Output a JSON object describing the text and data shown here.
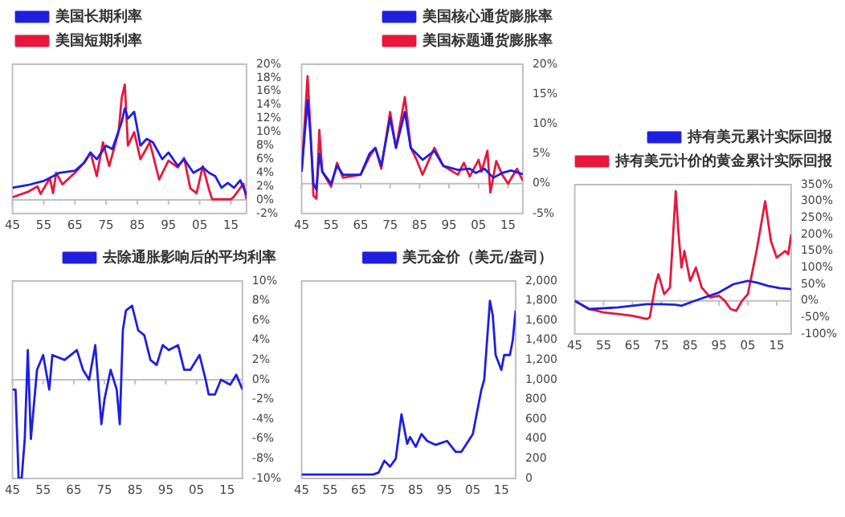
{
  "chart_data": [
    {
      "type": "line",
      "legend": "top left",
      "xlim": [
        1945,
        2020
      ],
      "xticks": [
        {
          "value": 1945,
          "label": "45"
        },
        {
          "value": 1955,
          "label": "55"
        },
        {
          "value": 1965,
          "label": "65"
        },
        {
          "value": 1975,
          "label": "75"
        },
        {
          "value": 1985,
          "label": "85"
        },
        {
          "value": 1995,
          "label": "95"
        },
        {
          "value": 2005,
          "label": "05"
        },
        {
          "value": 2015,
          "label": "15"
        }
      ],
      "ylim": [
        -2,
        20
      ],
      "yticks": [
        {
          "value": -2,
          "label": "-2%"
        },
        {
          "value": 0,
          "label": "0%"
        },
        {
          "value": 2,
          "label": "2%"
        },
        {
          "value": 4,
          "label": "4%"
        },
        {
          "value": 6,
          "label": "6%"
        },
        {
          "value": 8,
          "label": "8%"
        },
        {
          "value": 10,
          "label": "10%"
        },
        {
          "value": 12,
          "label": "12%"
        },
        {
          "value": 14,
          "label": "14%"
        },
        {
          "value": 16,
          "label": "16%"
        },
        {
          "value": 18,
          "label": "18%"
        },
        {
          "value": 20,
          "label": "20%"
        }
      ],
      "ref_lines": [
        {
          "axis": "y",
          "value": 0,
          "color": "#bfbfbf"
        }
      ],
      "series": [
        {
          "name": "美国长期利率",
          "color": "#1f1fe0",
          "x": [
            1945,
            1950,
            1955,
            1958,
            1960,
            1965,
            1968,
            1970,
            1972,
            1975,
            1977,
            1980,
            1981,
            1982,
            1984,
            1986,
            1988,
            1990,
            1993,
            1995,
            1998,
            2000,
            2003,
            2006,
            2008,
            2010,
            2012,
            2014,
            2016,
            2018,
            2020
          ],
          "values": [
            1.8,
            2.2,
            2.8,
            3.5,
            4.0,
            4.3,
            5.5,
            7.0,
            6.0,
            8.0,
            7.5,
            11.5,
            13.5,
            12.0,
            13.0,
            8.0,
            9.0,
            8.5,
            6.0,
            7.0,
            5.0,
            6.0,
            4.0,
            4.8,
            4.0,
            3.5,
            1.8,
            2.5,
            1.8,
            2.9,
            0.8
          ]
        },
        {
          "name": "美国短期利率",
          "color": "#e8173c",
          "x": [
            1945,
            1950,
            1953,
            1954,
            1957,
            1958,
            1959,
            1961,
            1965,
            1968,
            1970,
            1972,
            1974,
            1976,
            1979,
            1980,
            1981,
            1982,
            1984,
            1986,
            1989,
            1992,
            1995,
            1998,
            2000,
            2002,
            2004,
            2006,
            2008,
            2009,
            2015,
            2016,
            2019,
            2020
          ],
          "values": [
            0.4,
            1.2,
            2.0,
            0.9,
            3.2,
            1.0,
            4.0,
            2.3,
            4.0,
            5.5,
            7.0,
            3.5,
            8.5,
            5.0,
            10,
            15,
            17,
            8,
            10,
            6,
            8.5,
            3,
            5.8,
            4.8,
            6.2,
            1.7,
            1.0,
            5.0,
            1.5,
            0.1,
            0.1,
            0.5,
            2.4,
            0.1
          ]
        }
      ]
    },
    {
      "type": "line",
      "legend": "top right",
      "xlim": [
        1945,
        2020
      ],
      "xticks": [
        {
          "value": 1945,
          "label": "45"
        },
        {
          "value": 1955,
          "label": "55"
        },
        {
          "value": 1965,
          "label": "65"
        },
        {
          "value": 1975,
          "label": "75"
        },
        {
          "value": 1985,
          "label": "85"
        },
        {
          "value": 1995,
          "label": "95"
        },
        {
          "value": 2005,
          "label": "05"
        },
        {
          "value": 2015,
          "label": "15"
        }
      ],
      "ylim": [
        -5,
        20
      ],
      "yticks": [
        {
          "value": -5,
          "label": "-5%"
        },
        {
          "value": 0,
          "label": "0%"
        },
        {
          "value": 5,
          "label": "5%"
        },
        {
          "value": 10,
          "label": "10%"
        },
        {
          "value": 15,
          "label": "15%"
        },
        {
          "value": 20,
          "label": "20%"
        }
      ],
      "ref_lines": [
        {
          "axis": "y",
          "value": 0,
          "color": "#bfbfbf"
        }
      ],
      "series": [
        {
          "name": "美国核心通货膨胀率",
          "color": "#1f1fe0",
          "x": [
            1945,
            1947,
            1948,
            1949,
            1950,
            1951,
            1952,
            1955,
            1957,
            1959,
            1965,
            1968,
            1970,
            1972,
            1975,
            1977,
            1980,
            1982,
            1984,
            1986,
            1990,
            1993,
            1998,
            2002,
            2004,
            2007,
            2010,
            2013,
            2016,
            2020
          ],
          "values": [
            2,
            14,
            8,
            0,
            -1,
            5,
            2,
            0,
            3,
            1.5,
            1.5,
            5,
            6,
            3,
            11,
            6,
            12,
            6,
            5,
            4,
            5.5,
            3,
            2.3,
            2.5,
            1.8,
            2.5,
            1,
            1.8,
            2.2,
            1.6
          ]
        },
        {
          "name": "美国标题通货膨胀率",
          "color": "#e8173c",
          "x": [
            1945,
            1947,
            1948,
            1949,
            1950,
            1951,
            1952,
            1955,
            1957,
            1959,
            1965,
            1968,
            1970,
            1972,
            1975,
            1977,
            1980,
            1982,
            1984,
            1986,
            1990,
            1993,
            1998,
            2000,
            2002,
            2005,
            2006,
            2008,
            2009,
            2011,
            2013,
            2015,
            2018,
            2020
          ],
          "values": [
            2,
            18,
            9,
            -2,
            -2.5,
            9,
            2,
            -0.5,
            3.5,
            1,
            1.5,
            4.5,
            6,
            2.5,
            12,
            6,
            14.5,
            6,
            4,
            1.5,
            6,
            3,
            1.5,
            3.5,
            1.2,
            4,
            2,
            5.5,
            -1.5,
            3.8,
            1.5,
            0,
            2.5,
            0.5
          ]
        }
      ]
    },
    {
      "type": "line",
      "legend": "top right",
      "xlim": [
        1945,
        2020
      ],
      "xticks": [
        {
          "value": 1945,
          "label": "45"
        },
        {
          "value": 1955,
          "label": "55"
        },
        {
          "value": 1965,
          "label": "65"
        },
        {
          "value": 1975,
          "label": "75"
        },
        {
          "value": 1985,
          "label": "85"
        },
        {
          "value": 1995,
          "label": "95"
        },
        {
          "value": 2005,
          "label": "05"
        },
        {
          "value": 2015,
          "label": "15"
        }
      ],
      "ylim": [
        -100,
        350
      ],
      "yticks": [
        {
          "value": -100,
          "label": "-100%"
        },
        {
          "value": -50,
          "label": "-50%"
        },
        {
          "value": 0,
          "label": "0%"
        },
        {
          "value": 50,
          "label": "50%"
        },
        {
          "value": 100,
          "label": "100%"
        },
        {
          "value": 150,
          "label": "150%"
        },
        {
          "value": 200,
          "label": "200%"
        },
        {
          "value": 250,
          "label": "250%"
        },
        {
          "value": 300,
          "label": "300%"
        },
        {
          "value": 350,
          "label": "350%"
        }
      ],
      "ref_lines": [
        {
          "axis": "y",
          "value": 0,
          "color": "#bfbfbf"
        }
      ],
      "series": [
        {
          "name": "持有美元累计实际回报",
          "color": "#1f1fe0",
          "x": [
            1945,
            1950,
            1960,
            1970,
            1975,
            1980,
            1982,
            1985,
            1990,
            1995,
            2000,
            2005,
            2008,
            2012,
            2016,
            2020
          ],
          "values": [
            0,
            -25,
            -20,
            -10,
            -10,
            -12,
            -15,
            -5,
            10,
            25,
            50,
            60,
            55,
            45,
            38,
            35
          ]
        },
        {
          "name": "持有美元计价的黄金累计实际回报",
          "color": "#e8173c",
          "x": [
            1945,
            1950,
            1955,
            1960,
            1965,
            1970,
            1971,
            1973,
            1974,
            1976,
            1978,
            1980,
            1981,
            1982,
            1983,
            1985,
            1987,
            1989,
            1992,
            1995,
            1997,
            1999,
            2001,
            2003,
            2005,
            2008,
            2011,
            2013,
            2015,
            2018,
            2019,
            2020
          ],
          "values": [
            0,
            -25,
            -35,
            -40,
            -45,
            -55,
            -50,
            50,
            80,
            20,
            40,
            330,
            200,
            100,
            150,
            60,
            100,
            40,
            10,
            15,
            0,
            -25,
            -30,
            0,
            20,
            150,
            300,
            180,
            130,
            150,
            140,
            200
          ]
        }
      ]
    },
    {
      "type": "line",
      "legend": "top right",
      "xlim": [
        1945,
        2020
      ],
      "xticks": [
        {
          "value": 1945,
          "label": "45"
        },
        {
          "value": 1955,
          "label": "55"
        },
        {
          "value": 1965,
          "label": "65"
        },
        {
          "value": 1975,
          "label": "75"
        },
        {
          "value": 1985,
          "label": "85"
        },
        {
          "value": 1995,
          "label": "95"
        },
        {
          "value": 2005,
          "label": "05"
        },
        {
          "value": 2015,
          "label": "15"
        }
      ],
      "ylim": [
        -10,
        10
      ],
      "yticks": [
        {
          "value": -10,
          "label": "-10%"
        },
        {
          "value": -8,
          "label": "-8%"
        },
        {
          "value": -6,
          "label": "-6%"
        },
        {
          "value": -4,
          "label": "-4%"
        },
        {
          "value": -2,
          "label": "-2%"
        },
        {
          "value": 0,
          "label": "0%"
        },
        {
          "value": 2,
          "label": "2%"
        },
        {
          "value": 4,
          "label": "4%"
        },
        {
          "value": 6,
          "label": "6%"
        },
        {
          "value": 8,
          "label": "8%"
        },
        {
          "value": 10,
          "label": "10%"
        }
      ],
      "ref_lines": [
        {
          "axis": "y",
          "value": 0,
          "color": "#bfbfbf"
        }
      ],
      "series": [
        {
          "name": "去除通胀影响后的平均利率",
          "color": "#1f1fe0",
          "x": [
            1945,
            1946,
            1947,
            1948,
            1949,
            1950,
            1951,
            1953,
            1955,
            1957,
            1958,
            1962,
            1966,
            1968,
            1970,
            1972,
            1974,
            1975,
            1977,
            1979,
            1980,
            1981,
            1982,
            1984,
            1986,
            1988,
            1990,
            1992,
            1994,
            1996,
            1999,
            2001,
            2003,
            2006,
            2008,
            2009,
            2011,
            2013,
            2016,
            2018,
            2020
          ],
          "values": [
            -1,
            -1,
            -10,
            -10,
            -6,
            3,
            -6,
            1,
            2.5,
            -1,
            2.5,
            2,
            3,
            1,
            0,
            3.5,
            -4.5,
            -2,
            1,
            -1,
            -4.5,
            5,
            7,
            7.5,
            5,
            4.5,
            2,
            1.5,
            3.5,
            3,
            3.5,
            1,
            1,
            2.5,
            0,
            -1.5,
            -1.5,
            0,
            -0.5,
            0.5,
            -1
          ]
        }
      ]
    },
    {
      "type": "line",
      "legend": "top right",
      "xlim": [
        1945,
        2020
      ],
      "xticks": [
        {
          "value": 1945,
          "label": "45"
        },
        {
          "value": 1955,
          "label": "55"
        },
        {
          "value": 1965,
          "label": "65"
        },
        {
          "value": 1975,
          "label": "75"
        },
        {
          "value": 1985,
          "label": "85"
        },
        {
          "value": 1995,
          "label": "95"
        },
        {
          "value": 2005,
          "label": "05"
        },
        {
          "value": 2015,
          "label": "15"
        }
      ],
      "ylim": [
        0,
        2000
      ],
      "yticks": [
        0,
        200,
        400,
        600,
        800,
        {
          "value": 1000,
          "label": "1,000"
        },
        {
          "value": 1200,
          "label": "1,200"
        },
        {
          "value": 1400,
          "label": "1,400"
        },
        {
          "value": 1600,
          "label": "1,600"
        },
        {
          "value": 1800,
          "label": "1,800"
        },
        {
          "value": 2000,
          "label": "2,000"
        }
      ],
      "series": [
        {
          "name": "美元金价（美元/盎司）",
          "color": "#1f1fe0",
          "x": [
            1945,
            1970,
            1972,
            1974,
            1976,
            1978,
            1980,
            1982,
            1983,
            1985,
            1987,
            1989,
            1992,
            1996,
            1999,
            2001,
            2003,
            2005,
            2006,
            2008,
            2009,
            2011,
            2012,
            2013,
            2015,
            2016,
            2018,
            2019,
            2020
          ],
          "values": [
            40,
            40,
            60,
            180,
            120,
            200,
            650,
            350,
            420,
            320,
            450,
            380,
            340,
            380,
            270,
            270,
            360,
            450,
            600,
            900,
            1000,
            1800,
            1650,
            1250,
            1100,
            1250,
            1250,
            1400,
            1700
          ]
        }
      ]
    }
  ]
}
